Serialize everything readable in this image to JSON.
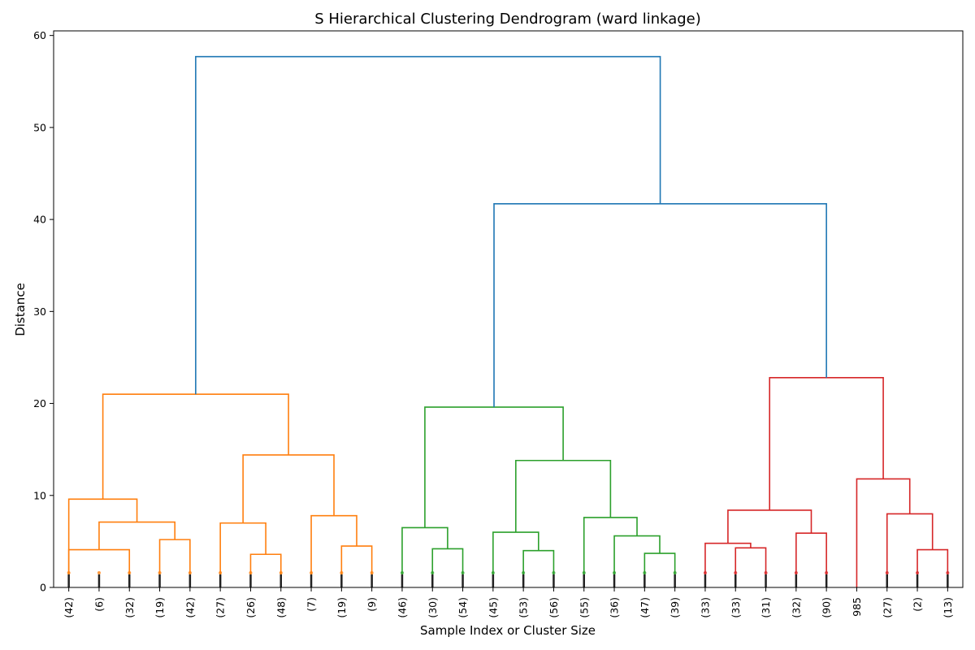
{
  "chart_data": {
    "type": "dendrogram",
    "title": "S Hierarchical Clustering Dendrogram (ward linkage)",
    "xlabel": "Sample Index or Cluster Size",
    "ylabel": "Distance",
    "ylim": [
      0,
      60.5
    ],
    "y_ticks": [
      0,
      10,
      20,
      30,
      40,
      50,
      60
    ],
    "leaf_labels": [
      "(42)",
      "(6)",
      "(32)",
      "(19)",
      "(42)",
      "(27)",
      "(26)",
      "(48)",
      "(7)",
      "(19)",
      "(9)",
      "(46)",
      "(30)",
      "(54)",
      "(45)",
      "(53)",
      "(56)",
      "(55)",
      "(36)",
      "(47)",
      "(39)",
      "(33)",
      "(33)",
      "(31)",
      "(32)",
      "(90)",
      "985",
      "(27)",
      "(2)",
      "(13)"
    ],
    "colors": {
      "orange": "#ff7f0e",
      "green": "#2ca02c",
      "red": "#d62728",
      "blue": "#1f77b4"
    },
    "links": [
      {
        "left": 0,
        "right": 2,
        "height": 4.1,
        "color": "orange"
      },
      {
        "left": 3,
        "right": 4,
        "height": 5.2,
        "color": "orange"
      },
      {
        "left": "L1",
        "right": "L2",
        "height": 7.1,
        "color": "orange"
      },
      {
        "left": 0,
        "right": "L3",
        "height": 9.6,
        "color": "orange"
      },
      {
        "left": 6,
        "right": 7,
        "height": 3.6,
        "color": "orange"
      },
      {
        "left": 5,
        "right": "L5",
        "height": 7.0,
        "color": "orange"
      },
      {
        "left": 9,
        "right": 10,
        "height": 4.5,
        "color": "orange"
      },
      {
        "left": 8,
        "right": "L7",
        "height": 7.8,
        "color": "orange"
      },
      {
        "left": "L6",
        "right": "L8",
        "height": 14.4,
        "color": "orange"
      },
      {
        "left": "L4",
        "right": "L9",
        "height": 21.0,
        "color": "orange"
      },
      {
        "left": 12,
        "right": 13,
        "height": 4.2,
        "color": "green"
      },
      {
        "left": 11,
        "right": "L11",
        "height": 6.5,
        "color": "green"
      },
      {
        "left": 15,
        "right": 16,
        "height": 4.0,
        "color": "green"
      },
      {
        "left": 14,
        "right": "L13",
        "height": 6.0,
        "color": "green"
      },
      {
        "left": 19,
        "right": 20,
        "height": 3.7,
        "color": "green"
      },
      {
        "left": 18,
        "right": "L15",
        "height": 5.6,
        "color": "green"
      },
      {
        "left": 17,
        "right": "L16",
        "height": 7.6,
        "color": "green"
      },
      {
        "left": "L14",
        "right": "L17",
        "height": 13.8,
        "color": "green"
      },
      {
        "left": "L12",
        "right": "L18",
        "height": 19.6,
        "color": "green"
      },
      {
        "left": 22,
        "right": 23,
        "height": 4.3,
        "color": "red"
      },
      {
        "left": 21,
        "right": "L20",
        "height": 4.8,
        "color": "red"
      },
      {
        "left": 24,
        "right": 25,
        "height": 5.9,
        "color": "red"
      },
      {
        "left": "L21",
        "right": "L22",
        "height": 8.4,
        "color": "red"
      },
      {
        "left": 28,
        "right": 29,
        "height": 4.1,
        "color": "red"
      },
      {
        "left": 27,
        "right": "L24",
        "height": 8.0,
        "color": "red"
      },
      {
        "left": 26,
        "right": "L25",
        "height": 11.8,
        "color": "red"
      },
      {
        "left": "L23",
        "right": "L26",
        "height": 22.8,
        "color": "red"
      },
      {
        "left": "L19",
        "right": "L27",
        "height": 41.7,
        "color": "blue"
      },
      {
        "left": "L10",
        "right": "L28",
        "height": 57.7,
        "color": "blue"
      }
    ]
  }
}
